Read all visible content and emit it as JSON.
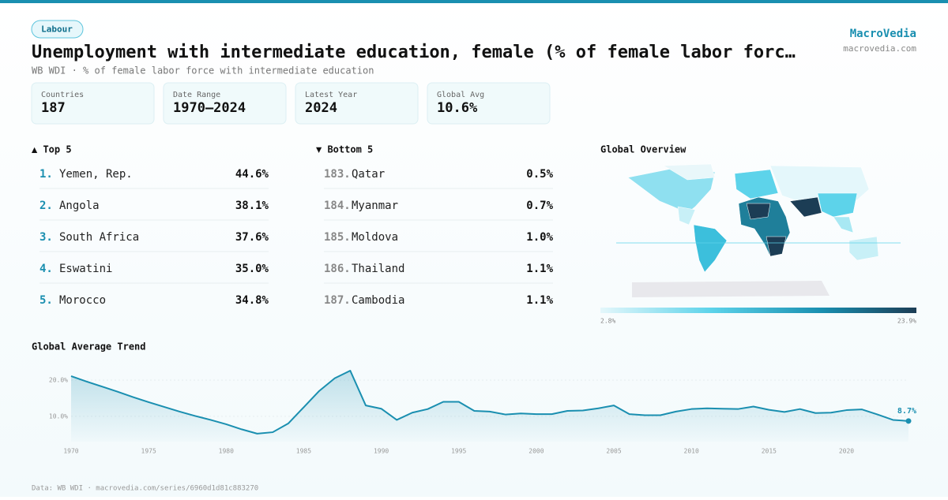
{
  "header": {
    "tag": "Labour",
    "title": "Unemployment with intermediate education, female (% of female labor forc…",
    "subtitle": "WB WDI · % of female labor force with intermediate education",
    "brand": "MacroVedia",
    "site": "macrovedia.com"
  },
  "stats": [
    {
      "label": "Countries",
      "value": "187"
    },
    {
      "label": "Date Range",
      "value": "1970–2024"
    },
    {
      "label": "Latest Year",
      "value": "2024"
    },
    {
      "label": "Global Avg",
      "value": "10.6%"
    }
  ],
  "top": {
    "title": "▲ Top 5",
    "rows": [
      {
        "rank": "1.",
        "name": "Yemen, Rep.",
        "value": "44.6%"
      },
      {
        "rank": "2.",
        "name": "Angola",
        "value": "38.1%"
      },
      {
        "rank": "3.",
        "name": "South Africa",
        "value": "37.6%"
      },
      {
        "rank": "4.",
        "name": "Eswatini",
        "value": "35.0%"
      },
      {
        "rank": "5.",
        "name": "Morocco",
        "value": "34.8%"
      }
    ]
  },
  "bottom": {
    "title": "▼ Bottom 5",
    "rows": [
      {
        "rank": "183.",
        "name": "Qatar",
        "value": "0.5%"
      },
      {
        "rank": "184.",
        "name": "Myanmar",
        "value": "0.7%"
      },
      {
        "rank": "185.",
        "name": "Moldova",
        "value": "1.0%"
      },
      {
        "rank": "186.",
        "name": "Thailand",
        "value": "1.1%"
      },
      {
        "rank": "187.",
        "name": "Cambodia",
        "value": "1.1%"
      }
    ]
  },
  "map": {
    "title": "Global Overview",
    "legend_min": "2.8%",
    "legend_max": "23.9%"
  },
  "chart_data": {
    "type": "line",
    "title": "Global Average Trend",
    "color": "#1a8fb0",
    "x": [
      1970,
      1971,
      1972,
      1973,
      1974,
      1975,
      1976,
      1977,
      1978,
      1979,
      1980,
      1981,
      1982,
      1983,
      1984,
      1985,
      1986,
      1987,
      1988,
      1989,
      1990,
      1991,
      1992,
      1993,
      1994,
      1995,
      1996,
      1997,
      1998,
      1999,
      2000,
      2001,
      2002,
      2003,
      2004,
      2005,
      2006,
      2007,
      2008,
      2009,
      2010,
      2011,
      2012,
      2013,
      2014,
      2015,
      2016,
      2017,
      2018,
      2019,
      2020,
      2021,
      2022,
      2023,
      2024
    ],
    "values": [
      21.1,
      19.6,
      18.2,
      16.8,
      15.3,
      13.9,
      12.6,
      11.3,
      10.1,
      9.0,
      7.8,
      6.4,
      5.2,
      5.6,
      8.0,
      12.5,
      17.0,
      20.5,
      22.6,
      13.0,
      12.1,
      9.0,
      11.0,
      12.0,
      14.0,
      14.0,
      11.5,
      11.3,
      10.5,
      10.8,
      10.6,
      10.6,
      11.5,
      11.6,
      12.2,
      13.0,
      10.6,
      10.3,
      10.3,
      11.3,
      12.0,
      12.2,
      12.1,
      12.0,
      12.7,
      11.8,
      11.2,
      12.0,
      10.9,
      11.0,
      11.7,
      11.9,
      10.5,
      9.0,
      8.7
    ],
    "value_labels": [
      null,
      null,
      null,
      null,
      null,
      null,
      null,
      null,
      null,
      null,
      null,
      null,
      null,
      null,
      null,
      null,
      null,
      null,
      null,
      null,
      null,
      null,
      null,
      null,
      null,
      null,
      null,
      null,
      null,
      null,
      null,
      null,
      null,
      null,
      null,
      null,
      null,
      null,
      null,
      null,
      null,
      null,
      null,
      null,
      null,
      null,
      null,
      null,
      null,
      null,
      null,
      null,
      null,
      null,
      "8.7%"
    ],
    "xlim": [
      1970,
      2024
    ],
    "xticks": [
      1970,
      1975,
      1980,
      1985,
      1990,
      1995,
      2000,
      2005,
      2010,
      2015,
      2020
    ],
    "ylim": [
      3,
      25
    ],
    "yticks": [
      {
        "value": 10,
        "label": "10.0%"
      },
      {
        "value": 20,
        "label": "20.0%"
      }
    ],
    "grid": true
  },
  "footer": "Data: WB WDI · macrovedia.com/series/6960d1d81c883270"
}
